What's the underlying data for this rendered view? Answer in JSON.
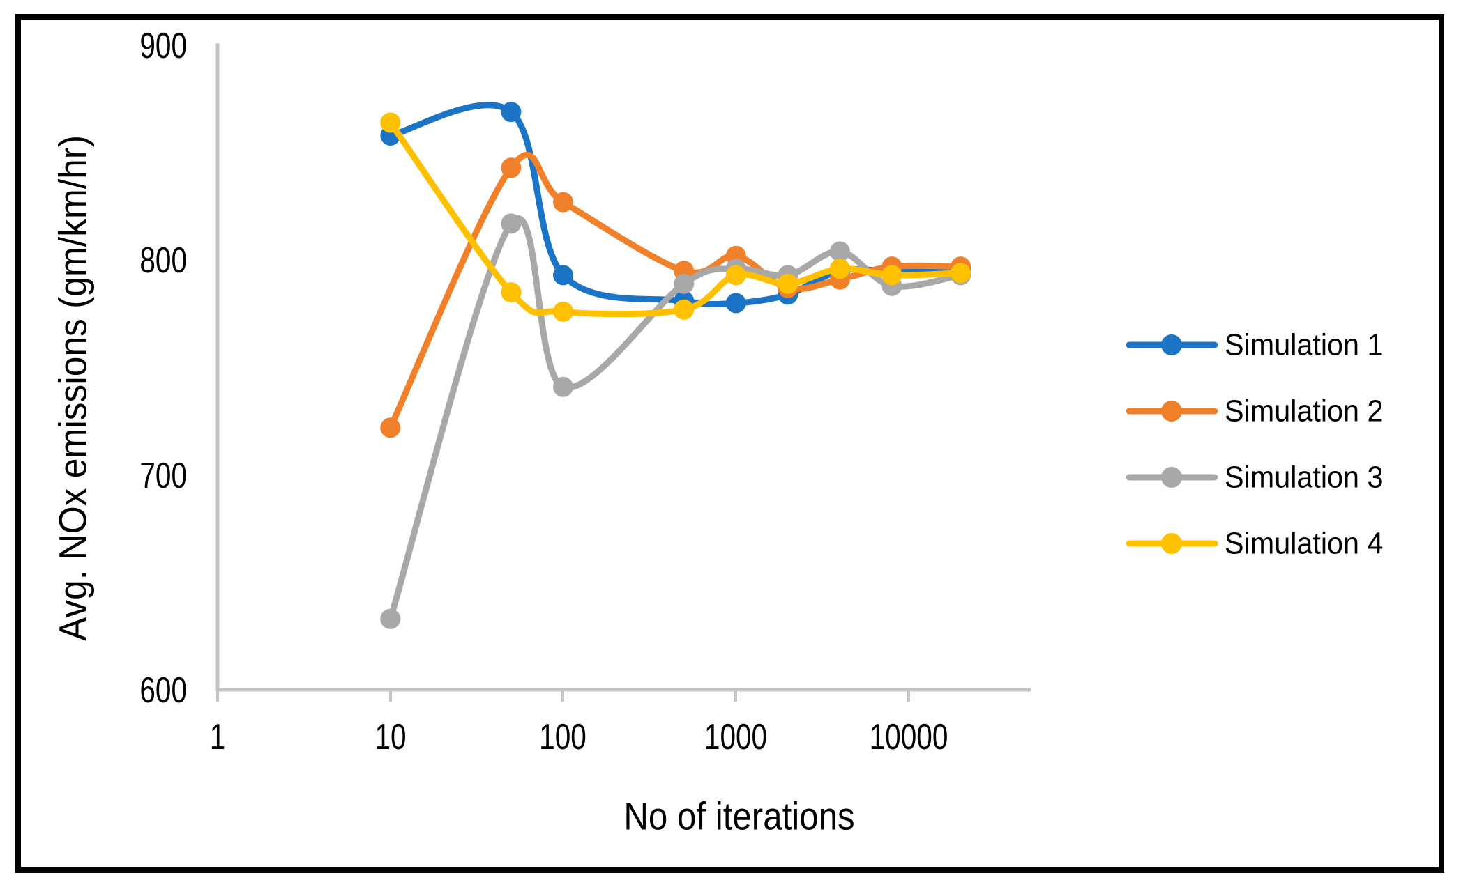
{
  "figure": {
    "frame_color": "#000000",
    "background_color": "#ffffff",
    "axis_line_color": "#c3c3c3",
    "text_color": "#000000"
  },
  "chart_data": {
    "type": "line",
    "smooth": true,
    "marker": "circle",
    "xlabel": "No of iterations",
    "ylabel": "Avg. NOx emissions (gm/km/hr)",
    "xscale": "log",
    "xlim": [
      1,
      50000
    ],
    "ylim": [
      600,
      900
    ],
    "grid": false,
    "legend_position": "right",
    "xticks": [
      1,
      10,
      100,
      1000,
      10000
    ],
    "yticks": [
      900,
      800,
      700,
      600
    ],
    "xtick_labels": [
      "1",
      "10",
      "100",
      "1000",
      "10000"
    ],
    "ytick_labels": [
      "900",
      "800",
      "700",
      "600"
    ],
    "x": [
      10,
      50,
      100,
      500,
      1000,
      2000,
      4000,
      8000,
      20000
    ],
    "series": [
      {
        "name": "Simulation 1",
        "color": "#1b74c5",
        "values": [
          858,
          869,
          793,
          781,
          780,
          784,
          795,
          795,
          796
        ]
      },
      {
        "name": "Simulation 2",
        "color": "#f0802a",
        "values": [
          722,
          843,
          827,
          795,
          802,
          787,
          791,
          797,
          797
        ]
      },
      {
        "name": "Simulation 3",
        "color": "#a8a8a8",
        "values": [
          633,
          817,
          741,
          789,
          796,
          793,
          804,
          788,
          793
        ]
      },
      {
        "name": "Simulation 4",
        "color": "#ffc000",
        "values": [
          864,
          785,
          776,
          777,
          793,
          789,
          796,
          793,
          794
        ]
      }
    ]
  }
}
